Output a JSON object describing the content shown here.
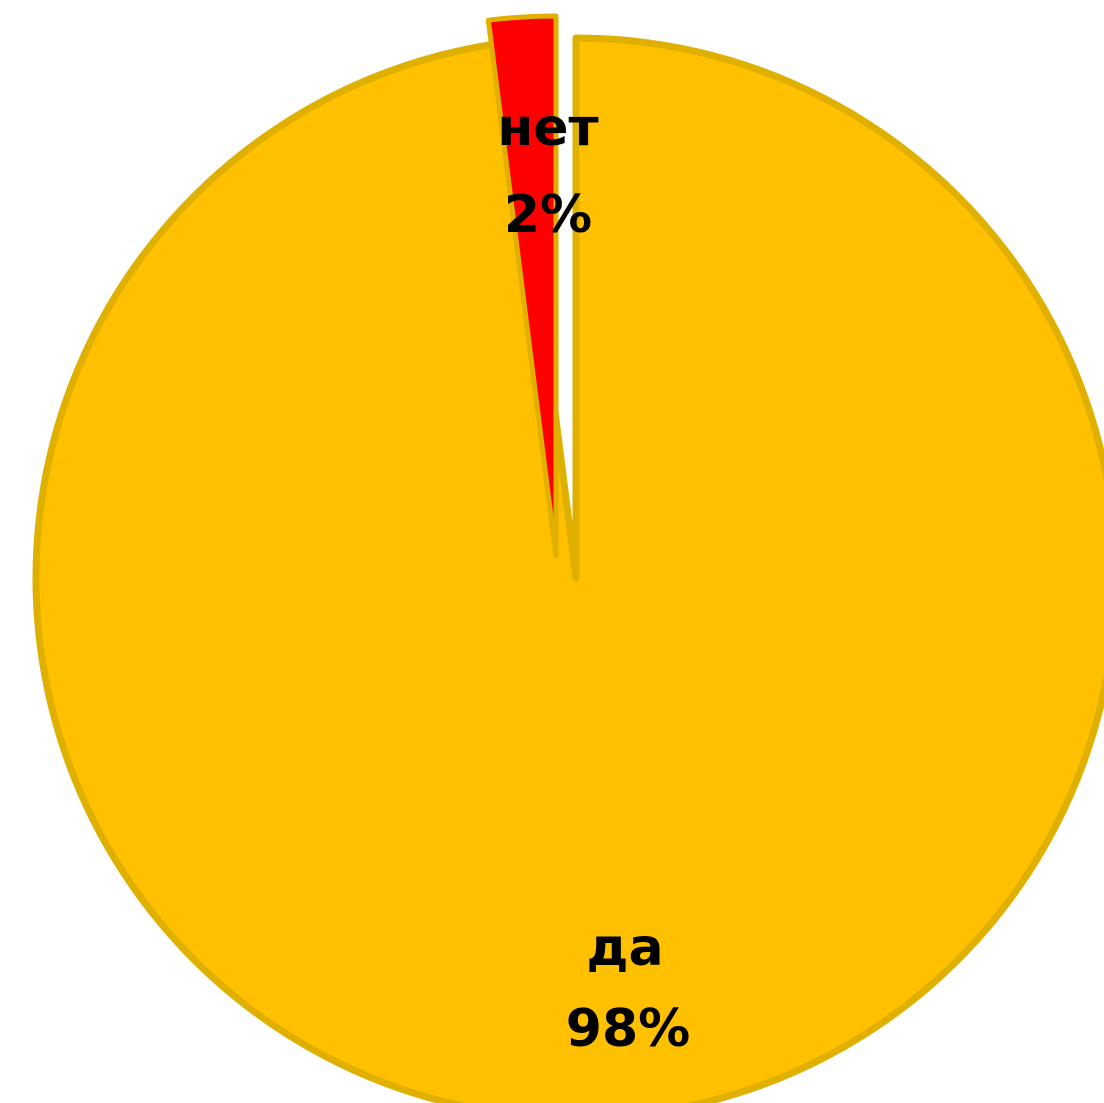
{
  "chart_data": {
    "type": "pie",
    "title": "",
    "categories": [
      "нет",
      "да"
    ],
    "values": [
      2,
      98
    ],
    "slices": [
      {
        "label": "нет",
        "percent_label": "2%",
        "value": 2,
        "color": "#ff0000"
      },
      {
        "label": "да",
        "percent_label": "98%",
        "value": 98,
        "color": "#ffc000"
      }
    ],
    "border_color": "#e0b000",
    "start_direction": "top",
    "direction": "counterclockwise-from-top-for-first-slice",
    "legend": "none",
    "data_labels": "inside"
  }
}
